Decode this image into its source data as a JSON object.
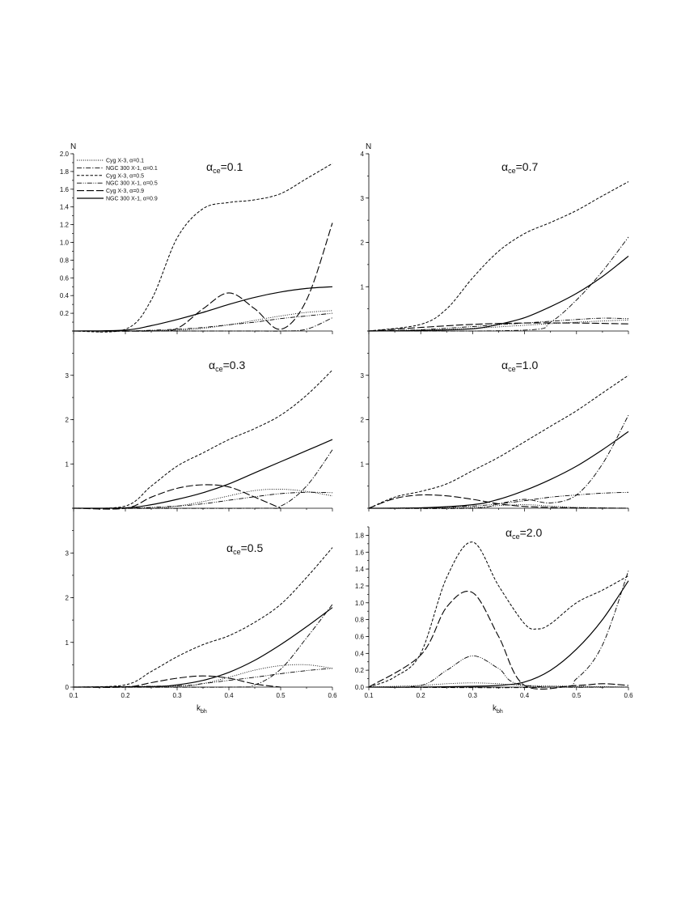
{
  "figure": {
    "xlabel": {
      "main": "k",
      "sub": "bh"
    },
    "ylabel": "N",
    "legend": [
      {
        "label": "Cyg X-3, α=0.1",
        "style": "dotted"
      },
      {
        "label": "NGC 300 X-1, α=0.1",
        "style": "dashdot"
      },
      {
        "label": "Cyg X-3, α=0.5",
        "style": "dashed"
      },
      {
        "label": "NGC 300 X-1, α=0.5",
        "style": "dashdotdot"
      },
      {
        "label": "Cyg X-3, α=0.9",
        "style": "longdash"
      },
      {
        "label": "NGC 300 X-1, α=0.9",
        "style": "solid"
      }
    ]
  },
  "chart_data": [
    {
      "type": "line",
      "panel": "top-left",
      "title": {
        "prefix": "α",
        "sub": "ce",
        "value": "=0.1"
      },
      "xlim": [
        0.1,
        0.6
      ],
      "ylim": [
        0,
        2.0
      ],
      "yticks": [
        "0.2",
        "0.4",
        "0.6",
        "0.8",
        "1.0",
        "1.2",
        "1.4",
        "1.6",
        "1.8",
        "2.0"
      ],
      "xticks": [],
      "series": [
        {
          "name": "Cyg X-3, α=0.1",
          "x": [
            0.1,
            0.2,
            0.3,
            0.35,
            0.4,
            0.45,
            0.5,
            0.55,
            0.6
          ],
          "y": [
            0,
            0,
            0.01,
            0.03,
            0.07,
            0.12,
            0.17,
            0.21,
            0.23
          ]
        },
        {
          "name": "NGC 300 X-1, α=0.1",
          "x": [
            0.1,
            0.3,
            0.45,
            0.5,
            0.55,
            0.6
          ],
          "y": [
            0,
            0,
            0,
            0,
            0.02,
            0.15
          ]
        },
        {
          "name": "Cyg X-3, α=0.5",
          "x": [
            0.1,
            0.2,
            0.25,
            0.3,
            0.35,
            0.4,
            0.45,
            0.5,
            0.55,
            0.6
          ],
          "y": [
            0,
            0.02,
            0.35,
            1.05,
            1.38,
            1.45,
            1.48,
            1.55,
            1.72,
            1.89
          ]
        },
        {
          "name": "NGC 300 X-1, α=0.5",
          "x": [
            0.1,
            0.2,
            0.3,
            0.35,
            0.4,
            0.45,
            0.5,
            0.55,
            0.6
          ],
          "y": [
            0,
            0,
            0.02,
            0.04,
            0.07,
            0.1,
            0.14,
            0.17,
            0.2
          ]
        },
        {
          "name": "Cyg X-3, α=0.9",
          "x": [
            0.1,
            0.25,
            0.3,
            0.35,
            0.4,
            0.45,
            0.5,
            0.55,
            0.6
          ],
          "y": [
            0,
            0,
            0.03,
            0.25,
            0.43,
            0.25,
            0.02,
            0.35,
            1.22
          ]
        },
        {
          "name": "NGC 300 X-1, α=0.9",
          "x": [
            0.1,
            0.2,
            0.25,
            0.3,
            0.35,
            0.4,
            0.45,
            0.5,
            0.55,
            0.6
          ],
          "y": [
            0,
            0.01,
            0.06,
            0.13,
            0.21,
            0.3,
            0.38,
            0.44,
            0.48,
            0.5
          ]
        }
      ]
    },
    {
      "type": "line",
      "panel": "top-right",
      "title": {
        "prefix": "α",
        "sub": "ce",
        "value": "=0.7"
      },
      "xlim": [
        0.1,
        0.6
      ],
      "ylim": [
        0,
        4
      ],
      "yticks": [
        "1",
        "2",
        "3",
        "4"
      ],
      "xticks": [],
      "series": [
        {
          "name": "Cyg X-3, α=0.1",
          "x": [
            0.1,
            0.2,
            0.3,
            0.4,
            0.5,
            0.6
          ],
          "y": [
            0,
            0.02,
            0.06,
            0.13,
            0.2,
            0.25
          ]
        },
        {
          "name": "NGC 300 X-1, α=0.1",
          "x": [
            0.1,
            0.4,
            0.45,
            0.5,
            0.55,
            0.6
          ],
          "y": [
            0,
            0.02,
            0.2,
            0.7,
            1.35,
            2.12
          ]
        },
        {
          "name": "Cyg X-3, α=0.5",
          "x": [
            0.1,
            0.2,
            0.25,
            0.3,
            0.35,
            0.4,
            0.45,
            0.5,
            0.55,
            0.6
          ],
          "y": [
            0,
            0.15,
            0.5,
            1.2,
            1.8,
            2.2,
            2.45,
            2.72,
            3.05,
            3.37
          ]
        },
        {
          "name": "NGC 300 X-1, α=0.5",
          "x": [
            0.1,
            0.2,
            0.3,
            0.4,
            0.5,
            0.55,
            0.6
          ],
          "y": [
            0,
            0.03,
            0.1,
            0.18,
            0.26,
            0.29,
            0.28
          ]
        },
        {
          "name": "Cyg X-3, α=0.9",
          "x": [
            0.1,
            0.2,
            0.3,
            0.4,
            0.5,
            0.6
          ],
          "y": [
            0,
            0.08,
            0.15,
            0.18,
            0.18,
            0.16
          ]
        },
        {
          "name": "NGC 300 X-1, α=0.9",
          "x": [
            0.1,
            0.2,
            0.3,
            0.35,
            0.4,
            0.45,
            0.5,
            0.55,
            0.6
          ],
          "y": [
            0,
            0.01,
            0.05,
            0.15,
            0.3,
            0.55,
            0.85,
            1.23,
            1.69
          ]
        }
      ]
    },
    {
      "type": "line",
      "panel": "middle-left",
      "title": {
        "prefix": "α",
        "sub": "ce",
        "value": "=0.3"
      },
      "xlim": [
        0.1,
        0.6
      ],
      "ylim": [
        0,
        4
      ],
      "yticks": [
        "1",
        "2",
        "3"
      ],
      "xticks": [],
      "series": [
        {
          "name": "Cyg X-3, α=0.1",
          "x": [
            0.1,
            0.25,
            0.3,
            0.35,
            0.4,
            0.45,
            0.5,
            0.55,
            0.6
          ],
          "y": [
            0,
            0,
            0.05,
            0.15,
            0.28,
            0.4,
            0.43,
            0.38,
            0.28
          ]
        },
        {
          "name": "NGC 300 X-1, α=0.1",
          "x": [
            0.1,
            0.45,
            0.5,
            0.55,
            0.6
          ],
          "y": [
            0,
            0,
            0.05,
            0.5,
            1.32
          ]
        },
        {
          "name": "Cyg X-3, α=0.5",
          "x": [
            0.1,
            0.2,
            0.25,
            0.3,
            0.35,
            0.4,
            0.45,
            0.5,
            0.55,
            0.6
          ],
          "y": [
            0,
            0.05,
            0.5,
            0.95,
            1.25,
            1.55,
            1.8,
            2.1,
            2.55,
            3.12
          ]
        },
        {
          "name": "NGC 300 X-1, α=0.5",
          "x": [
            0.1,
            0.2,
            0.3,
            0.35,
            0.4,
            0.45,
            0.5,
            0.55,
            0.6
          ],
          "y": [
            0,
            0,
            0.05,
            0.1,
            0.18,
            0.26,
            0.33,
            0.36,
            0.35
          ]
        },
        {
          "name": "Cyg X-3, α=0.9",
          "x": [
            0.1,
            0.2,
            0.25,
            0.3,
            0.35,
            0.4,
            0.45,
            0.5
          ],
          "y": [
            0,
            0,
            0.25,
            0.45,
            0.53,
            0.48,
            0.25,
            0
          ]
        },
        {
          "name": "NGC 300 X-1, α=0.9",
          "x": [
            0.1,
            0.2,
            0.25,
            0.3,
            0.35,
            0.4,
            0.45,
            0.5,
            0.55,
            0.6
          ],
          "y": [
            0,
            0.01,
            0.08,
            0.2,
            0.35,
            0.55,
            0.8,
            1.05,
            1.3,
            1.55
          ]
        }
      ]
    },
    {
      "type": "line",
      "panel": "middle-right",
      "title": {
        "prefix": "α",
        "sub": "ce",
        "value": "=1.0"
      },
      "xlim": [
        0.1,
        0.6
      ],
      "ylim": [
        0,
        4
      ],
      "yticks": [
        "1",
        "2",
        "3"
      ],
      "xticks": [],
      "series": [
        {
          "name": "Cyg X-3, α=0.1",
          "x": [
            0.1,
            0.3,
            0.35,
            0.4,
            0.45,
            0.5,
            0.6
          ],
          "y": [
            0,
            0.02,
            0.06,
            0.08,
            0.05,
            0.02,
            0
          ]
        },
        {
          "name": "NGC 300 X-1, α=0.1",
          "x": [
            0.1,
            0.3,
            0.35,
            0.4,
            0.45,
            0.5,
            0.55,
            0.6
          ],
          "y": [
            0,
            0,
            0.1,
            0.2,
            0.12,
            0.3,
            1.0,
            2.1
          ]
        },
        {
          "name": "Cyg X-3, α=0.5",
          "x": [
            0.1,
            0.15,
            0.2,
            0.25,
            0.3,
            0.35,
            0.4,
            0.45,
            0.5,
            0.55,
            0.6
          ],
          "y": [
            0,
            0.25,
            0.38,
            0.55,
            0.85,
            1.15,
            1.5,
            1.85,
            2.2,
            2.6,
            3.0
          ]
        },
        {
          "name": "NGC 300 X-1, α=0.5",
          "x": [
            0.1,
            0.2,
            0.3,
            0.35,
            0.4,
            0.45,
            0.5,
            0.55,
            0.6
          ],
          "y": [
            0,
            0.01,
            0.05,
            0.1,
            0.17,
            0.25,
            0.3,
            0.34,
            0.36
          ]
        },
        {
          "name": "Cyg X-3, α=0.9",
          "x": [
            0.1,
            0.15,
            0.2,
            0.25,
            0.3,
            0.35,
            0.4,
            0.45,
            0.5,
            0.6
          ],
          "y": [
            0,
            0.22,
            0.3,
            0.28,
            0.2,
            0.1,
            0.04,
            0.02,
            0.01,
            0
          ]
        },
        {
          "name": "NGC 300 X-1, α=0.9",
          "x": [
            0.1,
            0.2,
            0.3,
            0.35,
            0.4,
            0.45,
            0.5,
            0.55,
            0.6
          ],
          "y": [
            0,
            0.01,
            0.08,
            0.2,
            0.4,
            0.65,
            0.95,
            1.32,
            1.73
          ]
        }
      ]
    },
    {
      "type": "line",
      "panel": "bottom-left",
      "title": {
        "prefix": "α",
        "sub": "ce",
        "value": "=0.5"
      },
      "xlim": [
        0.1,
        0.6
      ],
      "ylim": [
        0,
        4
      ],
      "yticks": [
        "0",
        "1",
        "2",
        "3"
      ],
      "xticks": [
        "0.1",
        "0.2",
        "0.3",
        "0.4",
        "0.5",
        "0.6"
      ],
      "series": [
        {
          "name": "Cyg X-3, α=0.1",
          "x": [
            0.1,
            0.3,
            0.35,
            0.4,
            0.45,
            0.5,
            0.55,
            0.6
          ],
          "y": [
            0,
            0.02,
            0.08,
            0.22,
            0.38,
            0.48,
            0.5,
            0.42
          ]
        },
        {
          "name": "NGC 300 X-1, α=0.1",
          "x": [
            0.1,
            0.4,
            0.45,
            0.5,
            0.55,
            0.6
          ],
          "y": [
            0,
            0,
            0.05,
            0.4,
            1.1,
            1.85
          ]
        },
        {
          "name": "Cyg X-3, α=0.5",
          "x": [
            0.1,
            0.2,
            0.25,
            0.3,
            0.35,
            0.4,
            0.45,
            0.5,
            0.55,
            0.6
          ],
          "y": [
            0,
            0.05,
            0.35,
            0.68,
            0.95,
            1.15,
            1.45,
            1.85,
            2.45,
            3.12
          ]
        },
        {
          "name": "NGC 300 X-1, α=0.5",
          "x": [
            0.1,
            0.3,
            0.35,
            0.4,
            0.45,
            0.5,
            0.55,
            0.6
          ],
          "y": [
            0,
            0.03,
            0.08,
            0.15,
            0.22,
            0.3,
            0.37,
            0.42
          ]
        },
        {
          "name": "Cyg X-3, α=0.9",
          "x": [
            0.1,
            0.2,
            0.25,
            0.3,
            0.35,
            0.4,
            0.45,
            0.5
          ],
          "y": [
            0,
            0,
            0.1,
            0.2,
            0.25,
            0.2,
            0.07,
            0
          ]
        },
        {
          "name": "NGC 300 X-1, α=0.9",
          "x": [
            0.1,
            0.25,
            0.3,
            0.35,
            0.4,
            0.45,
            0.5,
            0.55,
            0.6
          ],
          "y": [
            0,
            0.01,
            0.05,
            0.15,
            0.33,
            0.6,
            0.95,
            1.35,
            1.78
          ]
        }
      ]
    },
    {
      "type": "line",
      "panel": "bottom-right",
      "title": {
        "prefix": "α",
        "sub": "ce",
        "value": "=2.0"
      },
      "xlim": [
        0.1,
        0.6
      ],
      "ylim": [
        0,
        1.9
      ],
      "yticks": [
        "0.0",
        "0.2",
        "0.4",
        "0.6",
        "0.8",
        "1.0",
        "1.2",
        "1.4",
        "1.6",
        "1.8"
      ],
      "xticks": [
        "0.1",
        "0.2",
        "0.3",
        "0.4",
        "0.5",
        "0.6"
      ],
      "series": [
        {
          "name": "Cyg X-3, α=0.1",
          "x": [
            0.1,
            0.2,
            0.25,
            0.3,
            0.35,
            0.4,
            0.5,
            0.6
          ],
          "y": [
            0,
            0.02,
            0.04,
            0.05,
            0.04,
            0.02,
            0.01,
            0
          ]
        },
        {
          "name": "NGC 300 X-1, α=0.1",
          "x": [
            0.1,
            0.45,
            0.5,
            0.55,
            0.6
          ],
          "y": [
            0,
            0,
            0.1,
            0.5,
            1.38
          ]
        },
        {
          "name": "Cyg X-3, α=0.5",
          "x": [
            0.1,
            0.15,
            0.2,
            0.25,
            0.3,
            0.35,
            0.4,
            0.425,
            0.45,
            0.5,
            0.55,
            0.6
          ],
          "y": [
            0,
            0.12,
            0.4,
            1.3,
            1.72,
            1.2,
            0.75,
            0.69,
            0.75,
            1.0,
            1.15,
            1.32
          ]
        },
        {
          "name": "NGC 300 X-1, α=0.5",
          "x": [
            0.1,
            0.2,
            0.25,
            0.3,
            0.35,
            0.4,
            0.6
          ],
          "y": [
            0,
            0.02,
            0.2,
            0.37,
            0.22,
            0.02,
            0
          ]
        },
        {
          "name": "Cyg X-3, α=0.9",
          "x": [
            0.1,
            0.2,
            0.25,
            0.3,
            0.35,
            0.4,
            0.5,
            0.55,
            0.6
          ],
          "y": [
            0,
            0.38,
            0.95,
            1.12,
            0.6,
            0.02,
            0.02,
            0.04,
            0.02
          ]
        },
        {
          "name": "NGC 300 X-1, α=0.9",
          "x": [
            0.1,
            0.2,
            0.3,
            0.35,
            0.4,
            0.45,
            0.5,
            0.55,
            0.6
          ],
          "y": [
            0,
            0,
            0.01,
            0.02,
            0.06,
            0.2,
            0.45,
            0.8,
            1.26
          ]
        }
      ]
    }
  ]
}
